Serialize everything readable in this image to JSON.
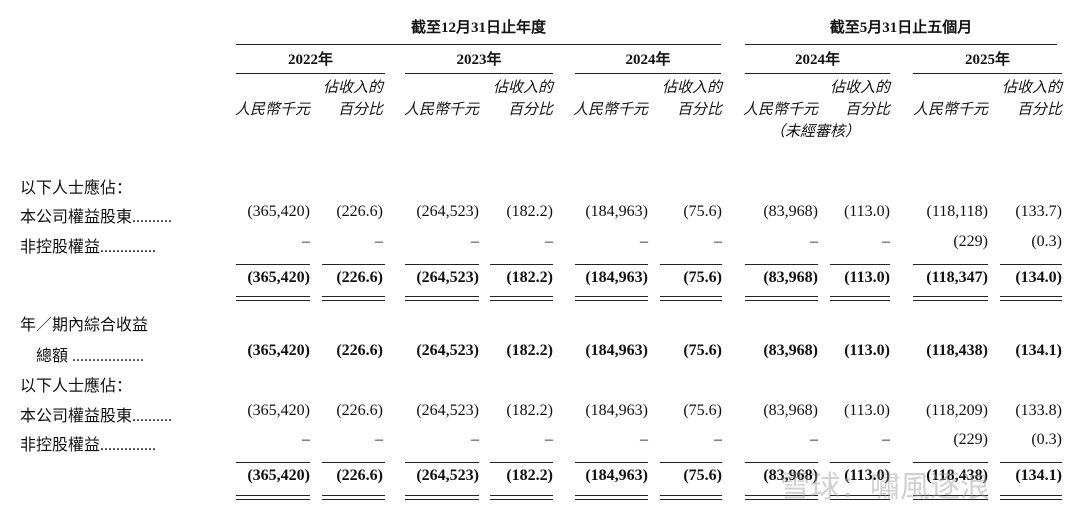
{
  "header": {
    "group1": "截至12月31日止年度",
    "group2": "截至5月31日止五個月",
    "years": [
      "2022年",
      "2023年",
      "2024年",
      "2024年",
      "2025年"
    ],
    "col_rmb": "人民幣千元",
    "col_pct_1": "佔收入的",
    "col_pct_2": "百分比",
    "unaudited": "（未經審核）"
  },
  "rows": [
    {
      "label": "以下人士應佔：",
      "values": []
    },
    {
      "label": "本公司權益股東..........",
      "values": [
        "(365,420)",
        "(226.6)",
        "(264,523)",
        "(182.2)",
        "(184,963)",
        "(75.6)",
        "(83,968)",
        "(113.0)",
        "(118,118)",
        "(133.7)"
      ]
    },
    {
      "label": "非控股權益..............",
      "values": [
        "–",
        "–",
        "–",
        "–",
        "–",
        "–",
        "–",
        "–",
        "(229)",
        "(0.3)"
      ]
    },
    {
      "label": "",
      "bold": true,
      "values": [
        "(365,420)",
        "(226.6)",
        "(264,523)",
        "(182.2)",
        "(184,963)",
        "(75.6)",
        "(83,968)",
        "(113.0)",
        "(118,347)",
        "(134.0)"
      ]
    },
    {
      "label": "年／期內綜合收益",
      "values": []
    },
    {
      "label": "　總額 ..................",
      "bold": true,
      "values": [
        "(365,420)",
        "(226.6)",
        "(264,523)",
        "(182.2)",
        "(184,963)",
        "(75.6)",
        "(83,968)",
        "(113.0)",
        "(118,438)",
        "(134.1)"
      ]
    },
    {
      "label": "以下人士應佔：",
      "values": []
    },
    {
      "label": "本公司權益股東..........",
      "values": [
        "(365,420)",
        "(226.6)",
        "(264,523)",
        "(182.2)",
        "(184,963)",
        "(75.6)",
        "(83,968)",
        "(113.0)",
        "(118,209)",
        "(133.8)"
      ]
    },
    {
      "label": "非控股權益..............",
      "values": [
        "–",
        "–",
        "–",
        "–",
        "–",
        "–",
        "–",
        "–",
        "(229)",
        "(0.3)"
      ]
    },
    {
      "label": "",
      "bold": true,
      "values": [
        "(365,420)",
        "(226.6)",
        "(264,523)",
        "(182.2)",
        "(184,963)",
        "(75.6)",
        "(83,968)",
        "(113.0)",
        "(118,438)",
        "(134.1)"
      ]
    }
  ],
  "watermark": "雪球：嘯風逐浪"
}
